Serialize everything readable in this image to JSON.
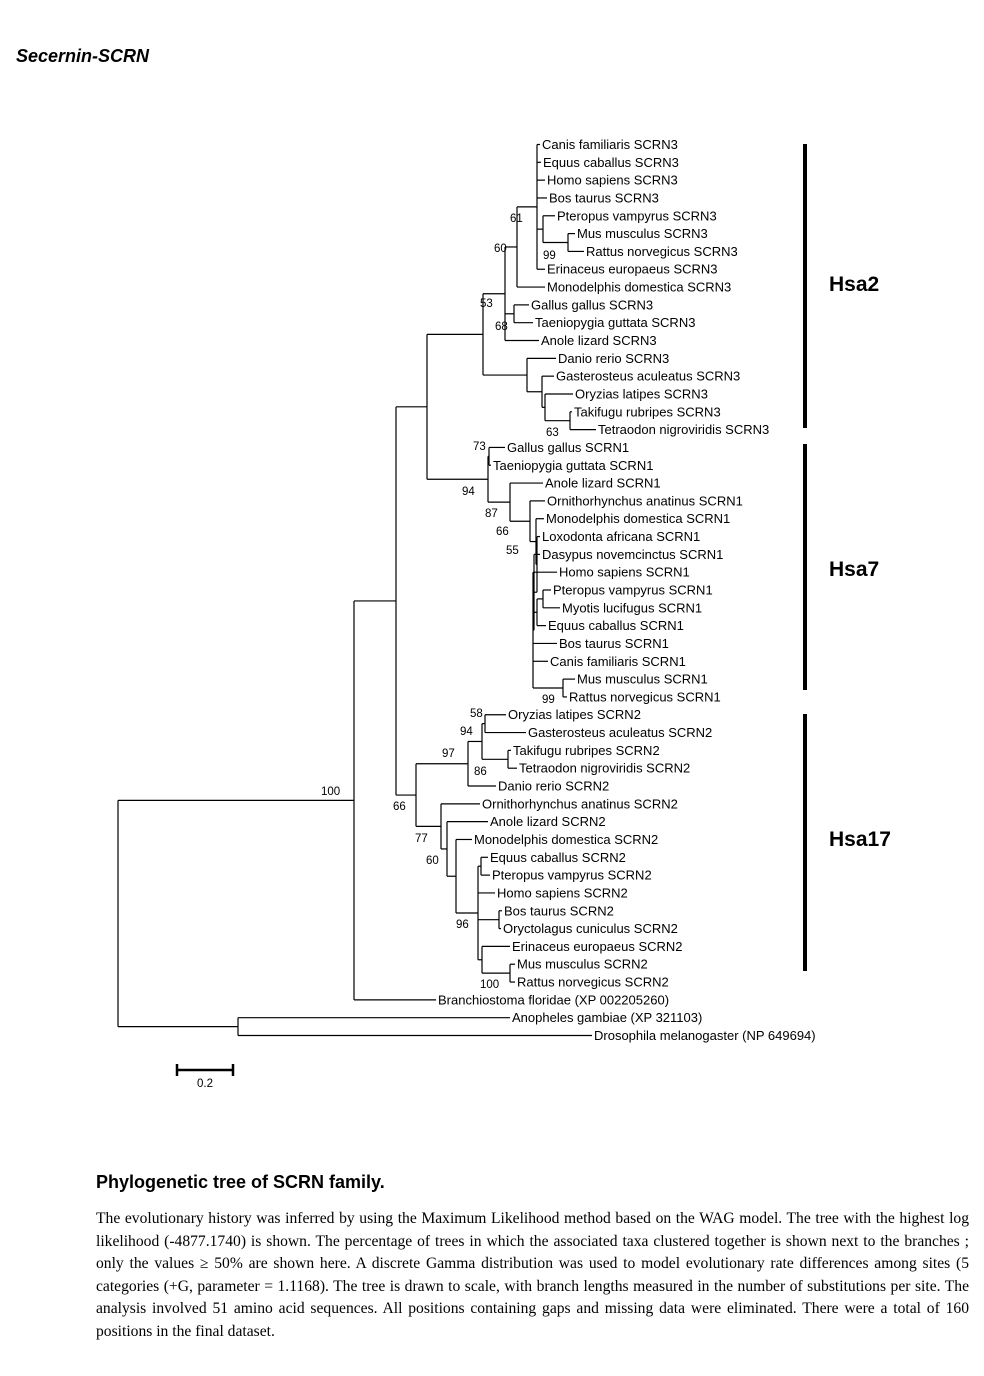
{
  "page_title": "Secernin-SCRN",
  "caption": {
    "title": "Phylogenetic tree of SCRN family.",
    "body": "The evolutionary history was inferred by using the Maximum Likelihood method based on the WAG model. The tree with the highest log likelihood (-4877.1740) is shown. The percentage of trees in which the associated taxa clustered together is shown next to the branches ; only the values ≥ 50% are shown here. A discrete Gamma distribution was used to model evolutionary rate differences among sites (5 categories (+G, parameter = 1.1168). The tree is drawn to scale, with branch lengths measured in the number of substitutions per site. The analysis involved 51 amino acid sequences. All positions containing gaps and missing data were eliminated. There were a total of 160 positions in the final dataset."
  },
  "scale_bar": {
    "label": "0.2"
  },
  "groups": [
    {
      "label": "Hsa2"
    },
    {
      "label": "Hsa7"
    },
    {
      "label": "Hsa17"
    }
  ],
  "taxa": [
    "Canis familiaris SCRN3",
    "Equus caballus SCRN3",
    "Homo sapiens SCRN3",
    "Bos taurus SCRN3",
    "Pteropus vampyrus SCRN3",
    "Mus musculus SCRN3",
    "Rattus norvegicus SCRN3",
    "Erinaceus europaeus SCRN3",
    "Monodelphis domestica SCRN3",
    "Gallus gallus SCRN3",
    "Taeniopygia guttata SCRN3",
    "Anole lizard SCRN3",
    "Danio rerio SCRN3",
    "Gasterosteus aculeatus SCRN3",
    "Oryzias latipes SCRN3",
    "Takifugu rubripes SCRN3",
    "Tetraodon nigroviridis SCRN3",
    "Gallus gallus SCRN1",
    "Taeniopygia guttata SCRN1",
    "Anole lizard SCRN1",
    "Ornithorhynchus anatinus SCRN1",
    "Monodelphis domestica SCRN1",
    "Loxodonta africana SCRN1",
    "Dasypus novemcinctus SCRN1",
    "Homo sapiens SCRN1",
    "Pteropus vampyrus SCRN1",
    "Myotis lucifugus SCRN1",
    "Equus caballus SCRN1",
    "Bos taurus SCRN1",
    "Canis familiaris SCRN1",
    "Mus musculus SCRN1",
    "Rattus norvegicus SCRN1",
    "Oryzias latipes SCRN2",
    "Gasterosteus aculeatus SCRN2",
    "Takifugu rubripes SCRN2",
    "Tetraodon nigroviridis SCRN2",
    "Danio rerio SCRN2",
    "Ornithorhynchus anatinus SCRN2",
    "Anole lizard SCRN2",
    "Monodelphis domestica SCRN2",
    "Equus caballus SCRN2",
    "Pteropus vampyrus SCRN2",
    "Homo sapiens SCRN2",
    "Bos taurus SCRN2",
    "Oryctolagus cuniculus SCRN2",
    "Erinaceus europaeus SCRN2",
    "Mus musculus SCRN2",
    "Rattus norvegicus SCRN2",
    "Branchiostoma floridae (XP 002205260)",
    "Anopheles gambiae (XP 321103)",
    "Drosophila melanogaster (NP 649694)"
  ],
  "support_values": [
    "61",
    "60",
    "99",
    "53",
    "68",
    "63",
    "73",
    "94",
    "87",
    "66",
    "55",
    "99",
    "58",
    "94",
    "97",
    "86",
    "100",
    "66",
    "77",
    "60",
    "96",
    "100"
  ]
}
